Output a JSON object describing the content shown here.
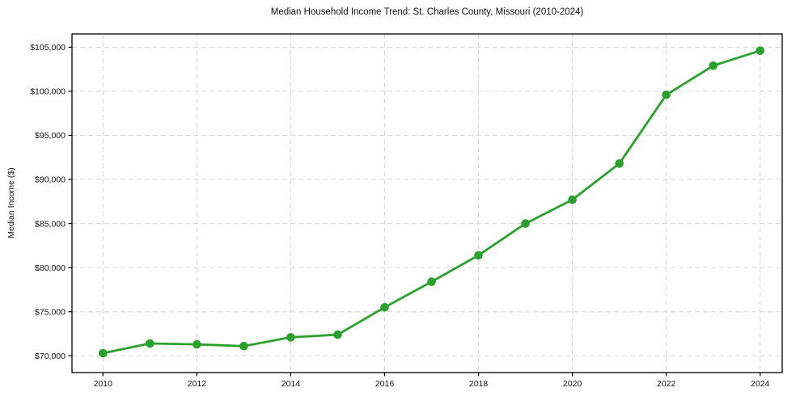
{
  "chart_data": {
    "type": "line",
    "title": "Median Household Income Trend: St. Charles County, Missouri (2010-2024)",
    "xlabel": "",
    "ylabel": "Median Income ($)",
    "x": [
      2010,
      2011,
      2012,
      2013,
      2014,
      2015,
      2016,
      2017,
      2018,
      2019,
      2020,
      2021,
      2022,
      2023,
      2024
    ],
    "series": [
      {
        "name": "Median Household Income",
        "values": [
          70300,
          71400,
          71300,
          71100,
          72100,
          72400,
          75500,
          78400,
          81400,
          85000,
          87700,
          91800,
          99600,
          102900,
          104600
        ]
      }
    ],
    "x_ticks": [
      2010,
      2012,
      2014,
      2016,
      2018,
      2020,
      2022,
      2024
    ],
    "x_tick_labels": [
      "2010",
      "2012",
      "2014",
      "2016",
      "2018",
      "2020",
      "2022",
      "2024"
    ],
    "y_ticks": [
      70000,
      75000,
      80000,
      85000,
      90000,
      95000,
      100000,
      105000
    ],
    "y_tick_labels": [
      "$70,000",
      "$75,000",
      "$80,000",
      "$85,000",
      "$90,000",
      "$95,000",
      "$100,000",
      "$105,000"
    ],
    "xlim": [
      2009.34,
      2024.47
    ],
    "ylim": [
      68100,
      106500
    ],
    "grid": true,
    "grid_style": "dashed",
    "legend_position": "none",
    "marker": "circle",
    "colors": {
      "line": "#2ca02c",
      "marker": "#2ca02c",
      "grid": "#d6d6d6",
      "axis": "#000000",
      "text": "#111111",
      "background": "#ffffff"
    }
  }
}
